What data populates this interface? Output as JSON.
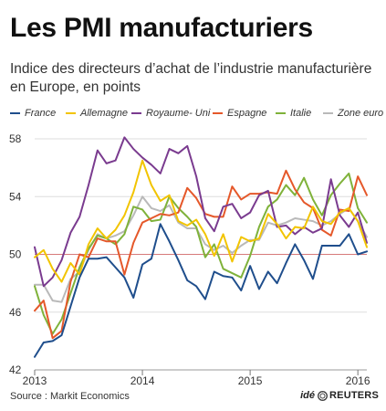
{
  "title": "Les PMI manufacturiers",
  "subtitle": "Indice des directeurs d’achat de l’industrie manufacturière en Europe, en points",
  "source": "Source : Markit Economics",
  "credit": {
    "ide": "idé",
    "reuters": "REUTERS"
  },
  "colors": {
    "France": "#1f4e8c",
    "Allemagne": "#f2c400",
    "Royaume- Uni": "#7a3b8f",
    "Espagne": "#e5582a",
    "Italie": "#7fb23a",
    "Zone euro": "#b9b9b9",
    "reference_line": "#d77a7a",
    "grid": "#dddddd"
  },
  "chart_data": {
    "type": "line",
    "title": "Les PMI manufacturiers",
    "subtitle": "Indice des directeurs d’achat de l’industrie manufacturière en Europe, en points",
    "xlabel": "",
    "ylabel": "",
    "ylim": [
      42,
      58
    ],
    "yticks": [
      42,
      46,
      50,
      54,
      58
    ],
    "xlim": [
      "2013-01",
      "2016-02"
    ],
    "xticks": [
      "2013",
      "2014",
      "2015",
      "2016"
    ],
    "reference_line": 50,
    "grid": "horizontal",
    "legend_position": "top",
    "x": [
      "2013-01",
      "2013-02",
      "2013-03",
      "2013-04",
      "2013-05",
      "2013-06",
      "2013-07",
      "2013-08",
      "2013-09",
      "2013-10",
      "2013-11",
      "2013-12",
      "2014-01",
      "2014-02",
      "2014-03",
      "2014-04",
      "2014-05",
      "2014-06",
      "2014-07",
      "2014-08",
      "2014-09",
      "2014-10",
      "2014-11",
      "2014-12",
      "2015-01",
      "2015-02",
      "2015-03",
      "2015-04",
      "2015-05",
      "2015-06",
      "2015-07",
      "2015-08",
      "2015-09",
      "2015-10",
      "2015-11",
      "2015-12",
      "2016-01",
      "2016-02"
    ],
    "series": [
      {
        "name": "France",
        "values": [
          42.9,
          43.9,
          44.0,
          44.4,
          46.4,
          48.4,
          49.7,
          49.7,
          49.8,
          49.1,
          48.4,
          47.0,
          49.3,
          49.7,
          52.1,
          50.9,
          49.6,
          48.2,
          47.8,
          46.9,
          48.8,
          48.5,
          48.4,
          47.5,
          49.2,
          47.6,
          48.8,
          48.0,
          49.4,
          50.7,
          49.6,
          48.3,
          50.6,
          50.6,
          50.6,
          51.4,
          50.0,
          50.2
        ]
      },
      {
        "name": "Allemagne",
        "values": [
          49.8,
          50.3,
          49.0,
          48.1,
          49.4,
          48.6,
          50.7,
          51.8,
          51.1,
          51.7,
          52.7,
          54.3,
          56.5,
          54.8,
          53.7,
          54.1,
          52.3,
          52.0,
          52.4,
          51.4,
          49.9,
          51.4,
          49.5,
          51.2,
          50.9,
          51.1,
          52.8,
          52.1,
          51.1,
          51.9,
          51.8,
          53.3,
          52.3,
          52.1,
          52.9,
          53.2,
          52.3,
          50.5
        ]
      },
      {
        "name": "Royaume- Uni",
        "values": [
          50.5,
          47.8,
          48.4,
          49.6,
          51.5,
          52.6,
          54.8,
          57.2,
          56.3,
          56.5,
          58.1,
          57.3,
          56.7,
          56.2,
          55.6,
          57.3,
          57.0,
          57.5,
          55.4,
          52.5,
          51.6,
          53.3,
          53.5,
          52.5,
          52.9,
          54.1,
          54.4,
          51.9,
          52.0,
          51.4,
          51.9,
          51.5,
          51.8,
          55.2,
          52.7,
          51.9,
          52.9,
          50.8
        ]
      },
      {
        "name": "Espagne",
        "values": [
          46.1,
          46.8,
          44.2,
          44.7,
          48.1,
          50.0,
          49.8,
          51.1,
          50.9,
          50.9,
          48.6,
          50.8,
          52.2,
          52.5,
          52.8,
          52.7,
          52.9,
          54.6,
          53.9,
          52.8,
          52.6,
          52.6,
          54.7,
          53.8,
          54.2,
          54.2,
          54.3,
          54.2,
          55.8,
          54.5,
          53.6,
          53.2,
          51.7,
          51.3,
          53.1,
          53.0,
          55.4,
          54.1
        ]
      },
      {
        "name": "Italie",
        "values": [
          47.8,
          45.8,
          44.5,
          45.5,
          47.3,
          49.1,
          50.4,
          51.3,
          51.1,
          50.7,
          51.4,
          53.3,
          53.1,
          52.3,
          52.4,
          54.0,
          53.2,
          52.6,
          51.9,
          49.8,
          50.7,
          49.0,
          48.7,
          48.4,
          49.9,
          51.9,
          53.3,
          53.8,
          54.8,
          54.1,
          55.3,
          53.8,
          52.7,
          54.1,
          54.9,
          55.6,
          53.2,
          52.2
        ]
      },
      {
        "name": "Zone euro",
        "values": [
          47.9,
          47.9,
          46.8,
          46.7,
          48.3,
          48.8,
          50.3,
          51.4,
          51.1,
          51.3,
          51.6,
          52.7,
          54.0,
          53.2,
          53.0,
          53.4,
          52.2,
          51.8,
          51.8,
          50.7,
          50.3,
          50.6,
          50.1,
          50.6,
          51.0,
          51.0,
          52.2,
          52.0,
          52.2,
          52.5,
          52.4,
          52.3,
          52.0,
          52.3,
          52.8,
          53.2,
          52.3,
          51.2
        ]
      }
    ]
  }
}
